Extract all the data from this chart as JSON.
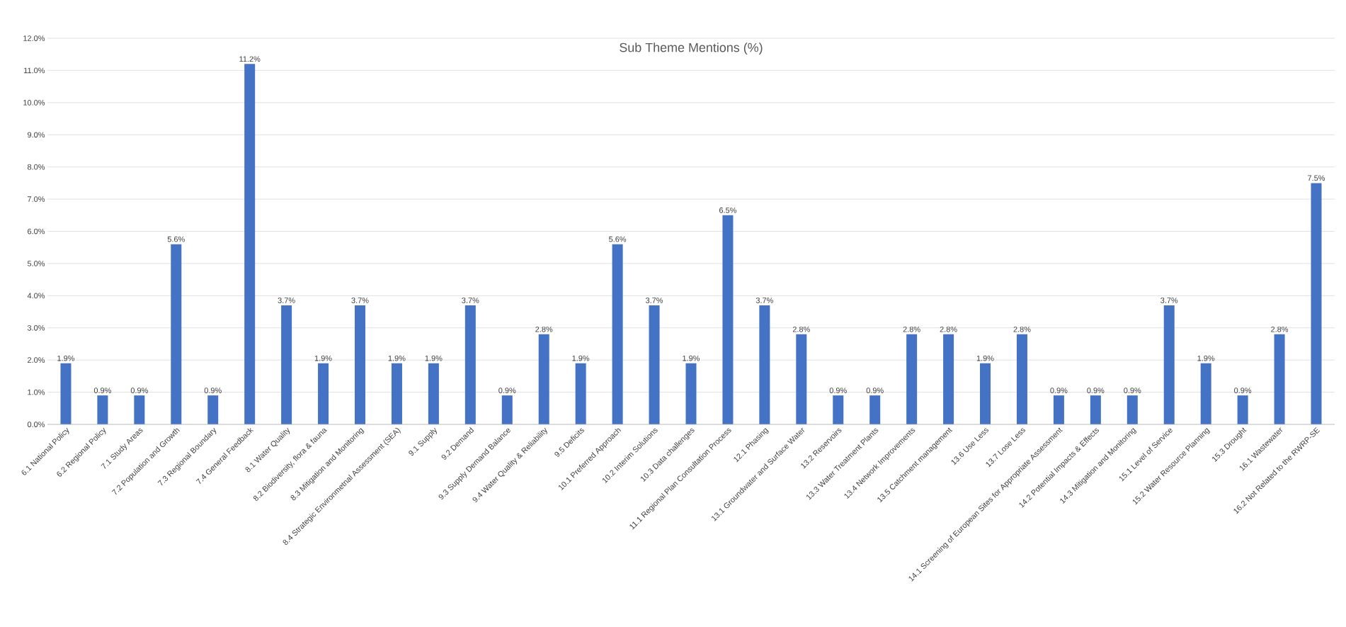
{
  "chart_data": {
    "type": "bar",
    "title": "Sub Theme Mentions (%)",
    "categories": [
      "6.1 National Policy",
      "6.2 Regional Policy",
      "7.1 Study Areas",
      "7.2 Population and Growth",
      "7.3 Regional Boundary",
      "7.4 General Feedback",
      "8.1 Water Quality",
      "8.2 Biodiversity, flora & fauna",
      "8.3 Mitigation and Monitoring",
      "8.4 Strategic Environmetnal Assessment (SEA)",
      "9.1 Supply",
      "9.2 Demand",
      "9.3 Supply Demand Balance",
      "9.4 Water Quality & Reliability",
      "9.5 Deficits",
      "10.1 Preferred Approach",
      "10.2 Interim Solutions",
      "10.3 Data challenges",
      "11.1 Regional Plan Consultation Process",
      "12.1 Phasing",
      "13.1 Groundwater and Surface Water",
      "13.2 Reservoirs",
      "13.3 Water Treatment Plants",
      "13.4 Network Improvements",
      "13.5 Catchment management",
      "13.6 Use Less",
      "13.7 Lose Less",
      "14.1 Screening of European Sites for Appropriate Assessment",
      "14.2 Potential Impacts & Effects",
      "14.3 Mitigation and Monitoring",
      "15.1 Level of Service",
      "15.2 Water Resource Planning",
      "15.3 Drought",
      "16.1 Wastewater",
      "16.2 Not Related to the RWRP-SE"
    ],
    "values": [
      1.9,
      0.9,
      0.9,
      5.6,
      0.9,
      11.2,
      3.7,
      1.9,
      3.7,
      1.9,
      1.9,
      3.7,
      0.9,
      2.8,
      1.9,
      5.6,
      3.7,
      1.9,
      6.5,
      3.7,
      2.8,
      0.9,
      0.9,
      2.8,
      2.8,
      1.9,
      2.8,
      0.9,
      0.9,
      0.9,
      3.7,
      1.9,
      0.9,
      2.8,
      7.5
    ],
    "value_labels": [
      "1.9%",
      "0.9%",
      "0.9%",
      "5.6%",
      "0.9%",
      "11.2%",
      "3.7%",
      "1.9%",
      "3.7%",
      "1.9%",
      "1.9%",
      "3.7%",
      "0.9%",
      "2.8%",
      "1.9%",
      "5.6%",
      "3.7%",
      "1.9%",
      "6.5%",
      "3.7%",
      "2.8%",
      "0.9%",
      "0.9%",
      "2.8%",
      "2.8%",
      "1.9%",
      "2.8%",
      "0.9%",
      "0.9%",
      "0.9%",
      "3.7%",
      "1.9%",
      "0.9%",
      "2.8%",
      "7.5%"
    ],
    "color": "#4472c4",
    "ylim": [
      0,
      12
    ],
    "yticks": [
      {
        "value": 0,
        "label": "0.0%"
      },
      {
        "value": 1,
        "label": "1.0%"
      },
      {
        "value": 2,
        "label": "2.0%"
      },
      {
        "value": 3,
        "label": "3.0%"
      },
      {
        "value": 4,
        "label": "4.0%"
      },
      {
        "value": 5,
        "label": "5.0%"
      },
      {
        "value": 6,
        "label": "6.0%"
      },
      {
        "value": 7,
        "label": "7.0%"
      },
      {
        "value": 8,
        "label": "8.0%"
      },
      {
        "value": 9,
        "label": "9.0%"
      },
      {
        "value": 10,
        "label": "10.0%"
      },
      {
        "value": 11,
        "label": "11.0%"
      },
      {
        "value": 12,
        "label": "12.0%"
      }
    ],
    "grid": "y"
  }
}
